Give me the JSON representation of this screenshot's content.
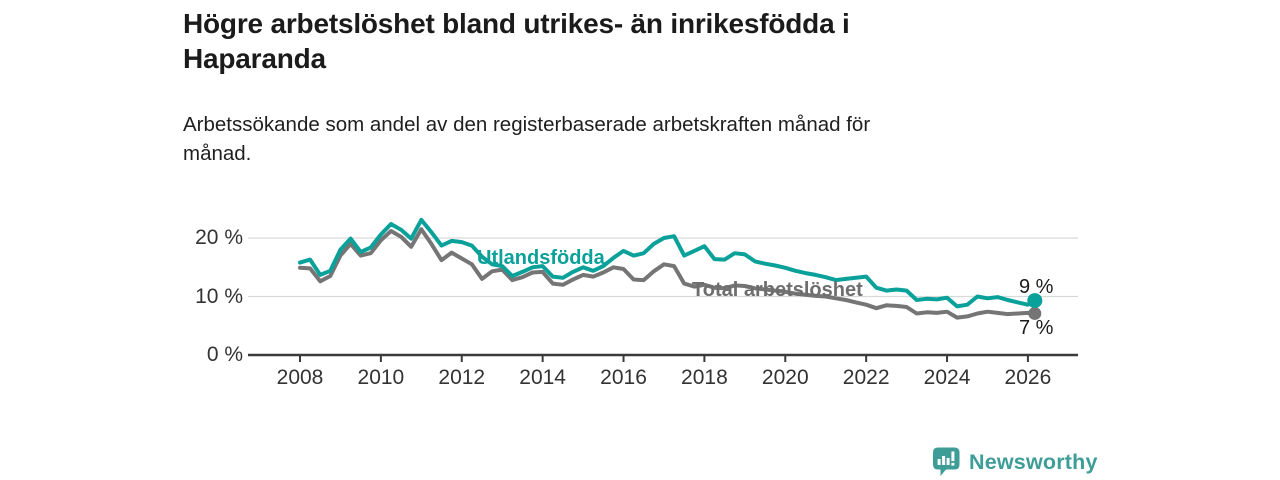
{
  "header": {
    "title_line1": "Högre arbetslöshet bland utrikes- än inrikesfödda i",
    "title_line2": "Haparanda",
    "subtitle_line1": "Arbetssökande som andel av den registerbaserade arbetskraften månad för",
    "subtitle_line2": "månad."
  },
  "footer": {
    "brand": "Newsworthy",
    "brand_color": "#3f9d97"
  },
  "chart_data": {
    "type": "line",
    "title": "Högre arbetslöshet bland utrikes- än inrikesfödda i Haparanda",
    "subtitle": "Arbetssökande som andel av den registerbaserade arbetskraften månad för månad.",
    "unit": "%",
    "grid": "horizontal",
    "legend_position": "inline-labels",
    "x_axis": {
      "ticks": [
        2008,
        2010,
        2012,
        2014,
        2016,
        2018,
        2020,
        2022,
        2024,
        2026
      ],
      "range": [
        2007.7,
        2026.4
      ]
    },
    "y_axis": {
      "ticks": [
        0,
        10,
        20
      ],
      "tick_labels": [
        "0 %",
        "10 %",
        "20 %"
      ],
      "range": [
        0,
        24
      ]
    },
    "colors": {
      "teal": "#0aa19a",
      "gray": "#757575",
      "gridline": "#d9d9d9",
      "axis": "#3a3a3a"
    },
    "series": [
      {
        "name": "Utlandsfödda",
        "color": "#0aa19a",
        "end_label": "9 %",
        "end_value": 9,
        "points": [
          [
            2008,
            15.8
          ],
          [
            2008.25,
            16.3
          ],
          [
            2008.5,
            13.7
          ],
          [
            2008.75,
            14.4
          ],
          [
            2009,
            18
          ],
          [
            2009.25,
            19.9
          ],
          [
            2009.5,
            17.6
          ],
          [
            2009.75,
            18.4
          ],
          [
            2010,
            20.6
          ],
          [
            2010.25,
            22.4
          ],
          [
            2010.5,
            21.4
          ],
          [
            2010.75,
            19.9
          ],
          [
            2011,
            23.1
          ],
          [
            2011.25,
            21
          ],
          [
            2011.5,
            18.7
          ],
          [
            2011.75,
            19.5
          ],
          [
            2012,
            19.3
          ],
          [
            2012.25,
            18.7
          ],
          [
            2012.5,
            16.8
          ],
          [
            2012.75,
            15.5
          ],
          [
            2013,
            15.2
          ],
          [
            2013.25,
            13.5
          ],
          [
            2013.5,
            14.2
          ],
          [
            2013.75,
            15
          ],
          [
            2014,
            15.2
          ],
          [
            2014.25,
            13.4
          ],
          [
            2014.5,
            13.2
          ],
          [
            2014.75,
            14.2
          ],
          [
            2015,
            15
          ],
          [
            2015.25,
            14.4
          ],
          [
            2015.5,
            15.2
          ],
          [
            2015.75,
            16.6
          ],
          [
            2016,
            17.8
          ],
          [
            2016.25,
            17
          ],
          [
            2016.5,
            17.4
          ],
          [
            2016.75,
            19
          ],
          [
            2017,
            20
          ],
          [
            2017.25,
            20.3
          ],
          [
            2017.5,
            17
          ],
          [
            2017.75,
            17.8
          ],
          [
            2018,
            18.6
          ],
          [
            2018.25,
            16.4
          ],
          [
            2018.5,
            16.3
          ],
          [
            2018.75,
            17.4
          ],
          [
            2019,
            17.2
          ],
          [
            2019.25,
            16
          ],
          [
            2019.5,
            15.6
          ],
          [
            2019.75,
            15.3
          ],
          [
            2020,
            14.9
          ],
          [
            2020.25,
            14.4
          ],
          [
            2020.5,
            14
          ],
          [
            2020.75,
            13.7
          ],
          [
            2021,
            13.3
          ],
          [
            2021.25,
            12.8
          ],
          [
            2021.5,
            13
          ],
          [
            2021.75,
            13.2
          ],
          [
            2022,
            13.4
          ],
          [
            2022.25,
            11.5
          ],
          [
            2022.5,
            11
          ],
          [
            2022.75,
            11.2
          ],
          [
            2023,
            11
          ],
          [
            2023.25,
            9.4
          ],
          [
            2023.5,
            9.6
          ],
          [
            2023.75,
            9.5
          ],
          [
            2024,
            9.8
          ],
          [
            2024.25,
            8.3
          ],
          [
            2024.5,
            8.6
          ],
          [
            2024.75,
            10
          ],
          [
            2025,
            9.7
          ],
          [
            2025.25,
            9.9
          ],
          [
            2025.5,
            9.4
          ],
          [
            2025.75,
            9
          ],
          [
            2026,
            8.6
          ],
          [
            2026.17,
            9.3
          ]
        ]
      },
      {
        "name": "Total arbetslöshet",
        "color": "#757575",
        "end_label": "7 %",
        "end_value": 7,
        "points": [
          [
            2008,
            14.9
          ],
          [
            2008.25,
            14.8
          ],
          [
            2008.5,
            12.6
          ],
          [
            2008.75,
            13.5
          ],
          [
            2009,
            17
          ],
          [
            2009.25,
            19
          ],
          [
            2009.5,
            17
          ],
          [
            2009.75,
            17.4
          ],
          [
            2010,
            19.6
          ],
          [
            2010.25,
            21.2
          ],
          [
            2010.5,
            20.2
          ],
          [
            2010.75,
            18.5
          ],
          [
            2011,
            21.5
          ],
          [
            2011.25,
            19
          ],
          [
            2011.5,
            16.2
          ],
          [
            2011.75,
            17.5
          ],
          [
            2012,
            16.5
          ],
          [
            2012.25,
            15.5
          ],
          [
            2012.5,
            13
          ],
          [
            2012.75,
            14.3
          ],
          [
            2013,
            14.6
          ],
          [
            2013.25,
            12.8
          ],
          [
            2013.5,
            13.3
          ],
          [
            2013.75,
            14.1
          ],
          [
            2014,
            14.2
          ],
          [
            2014.25,
            12.2
          ],
          [
            2014.5,
            12
          ],
          [
            2014.75,
            12.9
          ],
          [
            2015,
            13.7
          ],
          [
            2015.25,
            13.4
          ],
          [
            2015.5,
            14.1
          ],
          [
            2015.75,
            15
          ],
          [
            2016,
            14.7
          ],
          [
            2016.25,
            12.9
          ],
          [
            2016.5,
            12.8
          ],
          [
            2016.75,
            14.3
          ],
          [
            2017,
            15.5
          ],
          [
            2017.25,
            15.2
          ],
          [
            2017.5,
            12.2
          ],
          [
            2017.75,
            11.7
          ],
          [
            2018,
            12
          ],
          [
            2018.25,
            11.5
          ],
          [
            2018.5,
            11.4
          ],
          [
            2018.75,
            11.9
          ],
          [
            2019,
            11.8
          ],
          [
            2019.25,
            11.4
          ],
          [
            2019.5,
            11.2
          ],
          [
            2019.75,
            11
          ],
          [
            2020,
            10.8
          ],
          [
            2020.25,
            10.5
          ],
          [
            2020.5,
            10.3
          ],
          [
            2020.75,
            10.1
          ],
          [
            2021,
            10
          ],
          [
            2021.25,
            9.7
          ],
          [
            2021.5,
            9.4
          ],
          [
            2021.75,
            9
          ],
          [
            2022,
            8.6
          ],
          [
            2022.25,
            8
          ],
          [
            2022.5,
            8.5
          ],
          [
            2022.75,
            8.4
          ],
          [
            2023,
            8.2
          ],
          [
            2023.25,
            7.1
          ],
          [
            2023.5,
            7.3
          ],
          [
            2023.75,
            7.2
          ],
          [
            2024,
            7.4
          ],
          [
            2024.25,
            6.4
          ],
          [
            2024.5,
            6.6
          ],
          [
            2024.75,
            7.1
          ],
          [
            2025,
            7.4
          ],
          [
            2025.25,
            7.2
          ],
          [
            2025.5,
            7
          ],
          [
            2025.75,
            7.1
          ],
          [
            2026,
            7.2
          ],
          [
            2026.17,
            7.1
          ]
        ]
      }
    ]
  }
}
